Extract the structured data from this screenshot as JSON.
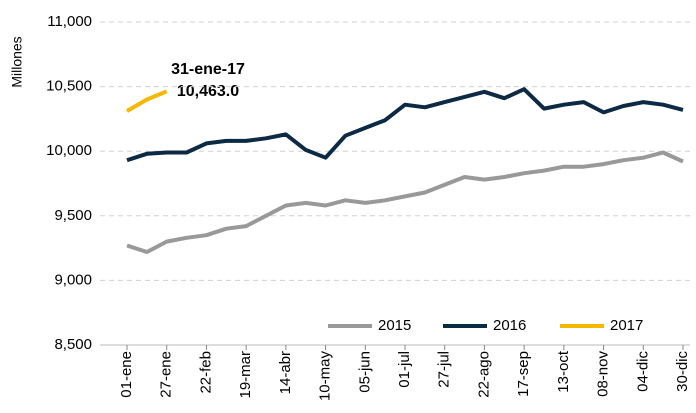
{
  "chart_data": {
    "type": "line",
    "y_label": "Millones",
    "annotation": [
      "31-ene-17",
      "10,463.0"
    ],
    "categories": [
      "01-ene",
      null,
      "27-ene",
      null,
      "22-feb",
      null,
      "19-mar",
      null,
      "14-abr",
      null,
      "10-may",
      null,
      "05-jun",
      null,
      "01-jul",
      null,
      "27-jul",
      null,
      "22-ago",
      null,
      "17-sep",
      null,
      "13-oct",
      null,
      "08-nov",
      null,
      "04-dic",
      null,
      "30-dic"
    ],
    "series": [
      {
        "name": "2015",
        "color": "#999999",
        "values": [
          9270,
          9220,
          9300,
          9330,
          9350,
          9400,
          9420,
          9500,
          9580,
          9600,
          9580,
          9620,
          9600,
          9620,
          9650,
          9680,
          9740,
          9800,
          9780,
          9800,
          9830,
          9850,
          9880,
          9880,
          9900,
          9930,
          9950,
          9990,
          9920
        ]
      },
      {
        "name": "2016",
        "color": "#0d2a45",
        "values": [
          9930,
          9980,
          9990,
          9990,
          10060,
          10080,
          10080,
          10100,
          10130,
          10010,
          9950,
          10120,
          10180,
          10240,
          10360,
          10340,
          10380,
          10420,
          10460,
          10410,
          10480,
          10330,
          10360,
          10380,
          10300,
          10350,
          10380,
          10360,
          10320
        ]
      },
      {
        "name": "2017",
        "color": "#f5b800",
        "values": [
          10310,
          10400,
          10463,
          null,
          null,
          null,
          null,
          null,
          null,
          null,
          null,
          null,
          null,
          null,
          null,
          null,
          null,
          null,
          null,
          null,
          null,
          null,
          null,
          null,
          null,
          null,
          null,
          null,
          null
        ]
      }
    ],
    "ylim": [
      8500,
      11000
    ],
    "yticks": [
      {
        "value": 8500,
        "label": "8,500"
      },
      {
        "value": 9000,
        "label": "9,000"
      },
      {
        "value": 9500,
        "label": "9,500"
      },
      {
        "value": 10000,
        "label": "10,000"
      },
      {
        "value": 10500,
        "label": "10,500"
      },
      {
        "value": 11000,
        "label": "11,000"
      }
    ],
    "grid": true,
    "legend": "bottom-right"
  }
}
